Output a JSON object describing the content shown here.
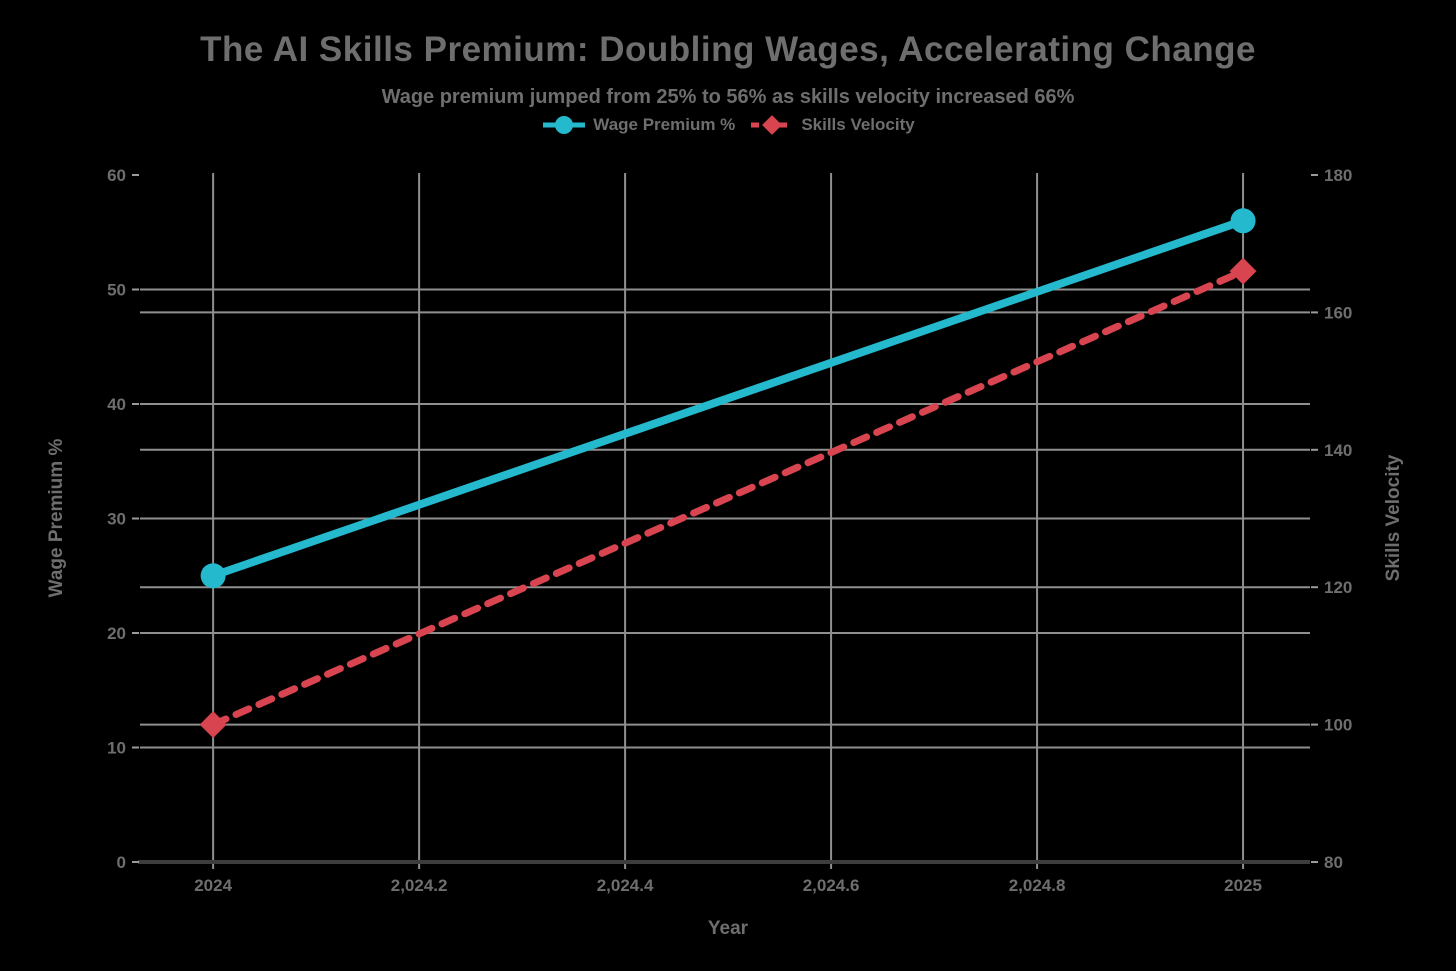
{
  "header": {
    "title": "The AI Skills Premium: Doubling Wages, Accelerating Change",
    "subtitle": "Wage premium jumped from 25% to 56% as skills velocity increased 66%"
  },
  "colors": {
    "background": "#000000",
    "text": "#6e6e6e",
    "grid": "#8f8f8f",
    "axis_line": "#3d3d3d",
    "tick": "#9a9a9a",
    "wage_premium": "#24b9cd",
    "skills_velocity": "#d8444f"
  },
  "legend": {
    "items": [
      {
        "label": "Wage Premium %",
        "marker": "circle",
        "color": "#24b9cd",
        "line_style": "solid"
      },
      {
        "label": "Skills Velocity",
        "marker": "diamond",
        "color": "#d8444f",
        "line_style": "dashed"
      }
    ]
  },
  "axes": {
    "left_title": "Wage Premium %",
    "right_title": "Skills Velocity",
    "x_title": "Year"
  },
  "chart_data": {
    "type": "line",
    "title": "The AI Skills Premium: Doubling Wages, Accelerating Change",
    "subtitle": "Wage premium jumped from 25% to 56% as skills velocity increased 66%",
    "xlabel": "Year",
    "grid": true,
    "legend_position": "top-center",
    "x_range": [
      2023.929,
      2025.065
    ],
    "x_ticks": [
      {
        "value": 2024.0,
        "label": "2024"
      },
      {
        "value": 2024.2,
        "label": "2,024.2"
      },
      {
        "value": 2024.4,
        "label": "2,024.4"
      },
      {
        "value": 2024.6,
        "label": "2,024.6"
      },
      {
        "value": 2024.8,
        "label": "2,024.8"
      },
      {
        "value": 2025.0,
        "label": "2025"
      }
    ],
    "yaxis_left": {
      "title": "Wage Premium %",
      "range": [
        0,
        60
      ],
      "ticks": [
        0,
        10,
        20,
        30,
        40,
        50,
        60
      ]
    },
    "yaxis_right": {
      "title": "Skills Velocity",
      "range": [
        80,
        180
      ],
      "ticks": [
        80,
        100,
        120,
        140,
        160,
        180
      ]
    },
    "series": [
      {
        "name": "Wage Premium %",
        "axis": "left",
        "x": [
          2024,
          2025
        ],
        "values": [
          25,
          56
        ],
        "color": "#24b9cd",
        "line_style": "solid",
        "marker": "circle"
      },
      {
        "name": "Skills Velocity",
        "axis": "right",
        "x": [
          2024,
          2025
        ],
        "values": [
          100,
          166
        ],
        "color": "#d8444f",
        "line_style": "dashed",
        "marker": "diamond"
      }
    ]
  }
}
